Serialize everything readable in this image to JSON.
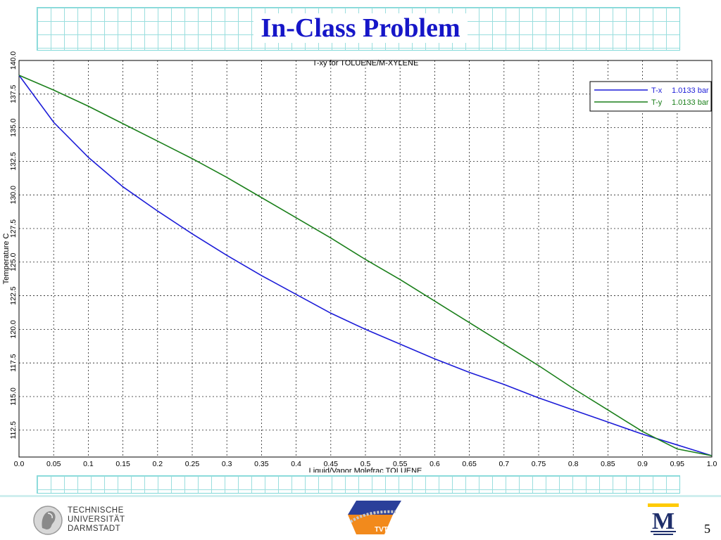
{
  "slide": {
    "title": "In-Class Problem",
    "page_number": "5",
    "footer": {
      "tud_lines": [
        "TECHNISCHE",
        "UNIVERSITÄT",
        "DARMSTADT"
      ],
      "tvt_logo_text": "TVT",
      "um_logo_letter": "M"
    }
  },
  "colors": {
    "title": "#1616c8",
    "tx_series": "#1c1cd8",
    "ty_series": "#1a7f1a",
    "grid_band": "#9adede"
  },
  "chart_data": {
    "type": "line",
    "title": "T-xy for TOLUENE/M-XYLENE",
    "xlabel": "Liquid/Vapor Molefrac TOLUENE",
    "ylabel": "Temperature  C",
    "xlim": [
      0,
      1
    ],
    "ylim": [
      110.5,
      140.0
    ],
    "xticks": [
      "0.0",
      "0.05",
      "0.1",
      "0.15",
      "0.2",
      "0.25",
      "0.3",
      "0.35",
      "0.4",
      "0.45",
      "0.5",
      "0.55",
      "0.6",
      "0.65",
      "0.7",
      "0.75",
      "0.8",
      "0.85",
      "0.9",
      "0.95",
      "1.0"
    ],
    "yticks": [
      "112.5",
      "115.0",
      "117.5",
      "120.0",
      "122.5",
      "125.0",
      "127.5",
      "130.0",
      "132.5",
      "135.0",
      "137.5",
      "140.0"
    ],
    "grid": true,
    "legend_position": "top-right",
    "series": [
      {
        "name": "T-x",
        "pressure_label": "1.0133 bar",
        "x": [
          0,
          0.05,
          0.1,
          0.15,
          0.2,
          0.25,
          0.3,
          0.35,
          0.4,
          0.45,
          0.5,
          0.55,
          0.6,
          0.65,
          0.7,
          0.75,
          0.8,
          0.85,
          0.9,
          0.95,
          1.0
        ],
        "y": [
          138.9,
          135.4,
          132.8,
          130.6,
          128.8,
          127.1,
          125.5,
          124.0,
          122.6,
          121.2,
          120.0,
          118.9,
          117.8,
          116.8,
          115.9,
          114.9,
          114.0,
          113.1,
          112.2,
          111.4,
          110.6
        ]
      },
      {
        "name": "T-y",
        "pressure_label": "1.0133 bar",
        "x": [
          0,
          0.05,
          0.1,
          0.15,
          0.2,
          0.25,
          0.3,
          0.35,
          0.4,
          0.45,
          0.5,
          0.55,
          0.6,
          0.65,
          0.7,
          0.75,
          0.8,
          0.85,
          0.9,
          0.95,
          1.0
        ],
        "y": [
          138.9,
          137.8,
          136.6,
          135.3,
          134.0,
          132.7,
          131.3,
          129.8,
          128.3,
          126.8,
          125.2,
          123.7,
          122.1,
          120.5,
          118.9,
          117.3,
          115.6,
          114.0,
          112.4,
          111.1,
          110.6
        ]
      }
    ]
  }
}
